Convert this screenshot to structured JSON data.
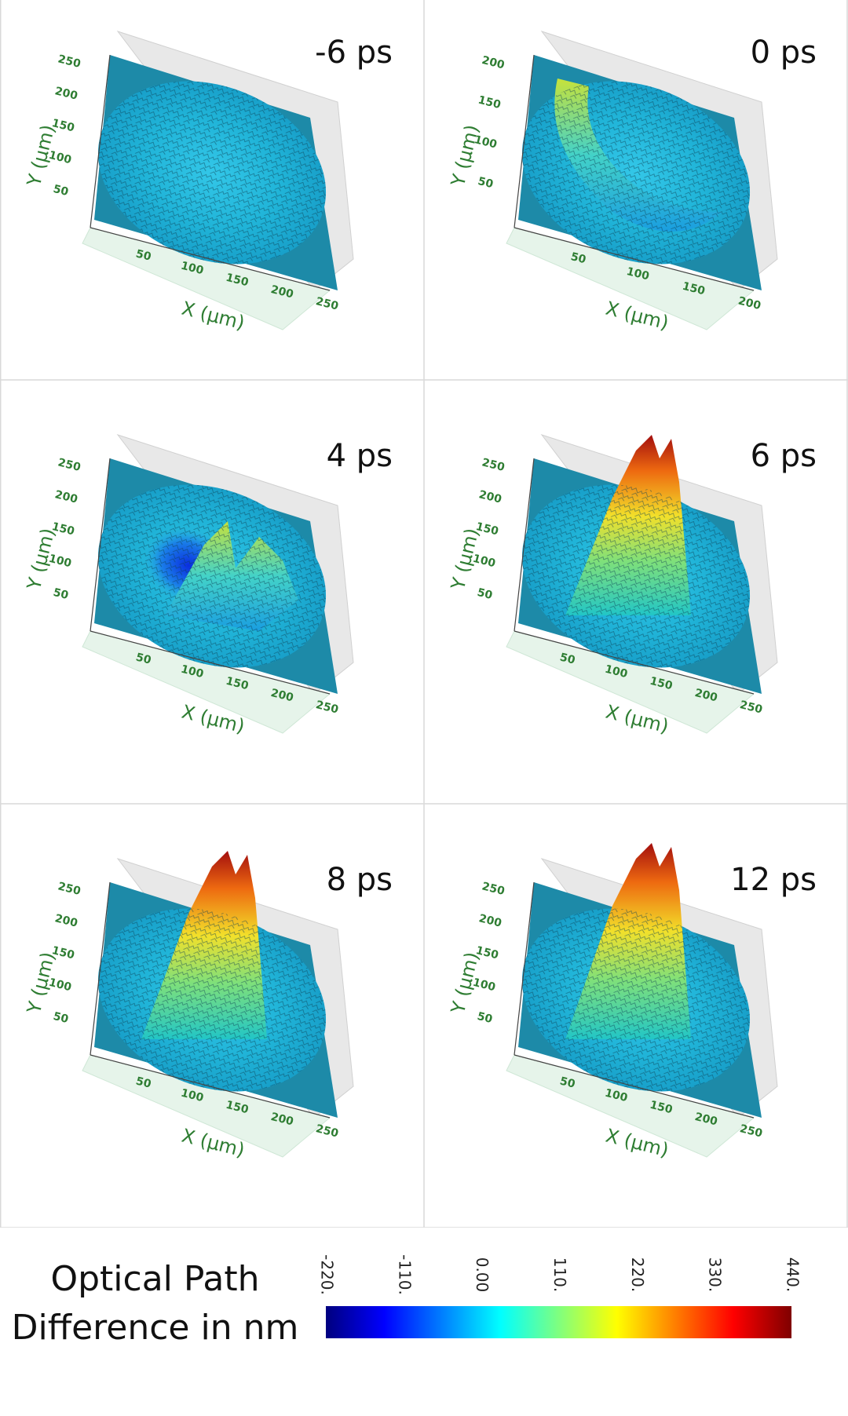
{
  "chart_data": {
    "type": "surface3d",
    "layout": "3 rows x 2 columns",
    "panels": [
      {
        "label": "-6 ps",
        "x_ticks": [
          "50",
          "100",
          "150",
          "200",
          "250"
        ],
        "y_ticks": [
          "50",
          "100",
          "150",
          "200",
          "250"
        ],
        "feature": "flat rough disk, no peak",
        "peak_level": 0.0
      },
      {
        "label": "0 ps",
        "x_ticks": [
          "50",
          "100",
          "150",
          "200"
        ],
        "y_ticks": [
          "50",
          "100",
          "150",
          "200"
        ],
        "feature": "crescent shaped ridge",
        "peak_level": 0.45
      },
      {
        "label": "4 ps",
        "x_ticks": [
          "50",
          "100",
          "150",
          "200",
          "250"
        ],
        "y_ticks": [
          "50",
          "100",
          "150",
          "200",
          "250"
        ],
        "feature": "central depression with ring",
        "peak_level": 0.55
      },
      {
        "label": "6 ps",
        "x_ticks": [
          "50",
          "100",
          "150",
          "200",
          "250"
        ],
        "y_ticks": [
          "50",
          "100",
          "150",
          "200",
          "250"
        ],
        "feature": "central peak",
        "peak_level": 0.9
      },
      {
        "label": "8 ps",
        "x_ticks": [
          "50",
          "100",
          "150",
          "200",
          "250"
        ],
        "y_ticks": [
          "50",
          "100",
          "150",
          "200",
          "250"
        ],
        "feature": "central peak",
        "peak_level": 0.95
      },
      {
        "label": "12 ps",
        "x_ticks": [
          "50",
          "100",
          "150",
          "200",
          "250"
        ],
        "y_ticks": [
          "50",
          "100",
          "150",
          "200",
          "250"
        ],
        "feature": "central peak",
        "peak_level": 1.0
      }
    ],
    "x_axis": {
      "label": "X",
      "unit": "(µm)"
    },
    "y_axis": {
      "label": "Y",
      "unit": "(µm)"
    },
    "colorbar": {
      "title_line1": "Optical Path",
      "title_line2": "Difference in nm",
      "ticks": [
        "-220.",
        "-110.",
        "0.00",
        "110.",
        "220.",
        "330.",
        "440."
      ],
      "range": [
        -220,
        440
      ],
      "colormap": "jet",
      "colors": [
        "#00007f",
        "#0000ff",
        "#007fff",
        "#00ffff",
        "#7fff7f",
        "#ffff00",
        "#ff7f00",
        "#ff0000",
        "#7f0000"
      ]
    },
    "colors": {
      "axis_text": "#2e7d32",
      "base_plane": "#1d8aa8",
      "back_wall": "#e8e8e8",
      "floor": "#e6f4ea"
    }
  }
}
